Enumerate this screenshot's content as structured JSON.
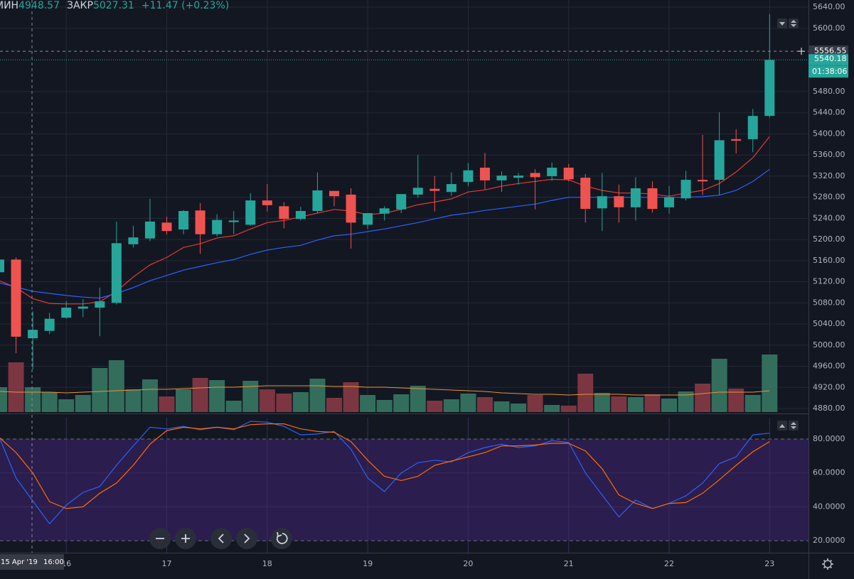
{
  "legend": {
    "low_label": "МИН",
    "low": 4948.57,
    "close_label": "ЗАКР",
    "close": 5027.31,
    "change": "+11.47 (+0.23%)"
  },
  "crosshair": {
    "price": 5556.55,
    "date": "15 Apr '19",
    "time": "16:00"
  },
  "last_price": {
    "value": 5540.18,
    "countdown": "01:38:06"
  },
  "chart_data": [
    {
      "type": "candlestick",
      "categories": [
        null,
        null,
        null,
        null,
        "16",
        null,
        null,
        null,
        null,
        null,
        "17",
        null,
        null,
        null,
        null,
        null,
        "18",
        null,
        null,
        null,
        null,
        null,
        "19",
        null,
        null,
        null,
        null,
        null,
        "20",
        null,
        null,
        null,
        null,
        null,
        "21",
        null,
        null,
        null,
        null,
        null,
        "22",
        null,
        null,
        null,
        null,
        null,
        "23"
      ],
      "open": [
        5138,
        5162,
        5013,
        5027,
        5052,
        5069,
        5071,
        5080,
        5191,
        5202,
        5232,
        5219,
        5255,
        5210,
        5233,
        5228,
        5274,
        5263,
        5239,
        5254,
        5292,
        5285,
        5228,
        5249,
        5257,
        5285,
        5296,
        5290,
        5309,
        5336,
        5312,
        5317,
        5326,
        5320,
        5336,
        5317,
        5259,
        5282,
        5261,
        5297,
        5261,
        5278,
        5313,
        5313,
        5390,
        5390,
        5434
      ],
      "high": [
        5162,
        5166,
        5064,
        5061,
        5083,
        5087,
        5109,
        5234,
        5226,
        5277,
        5243,
        5256,
        5269,
        5248,
        5254,
        5288,
        5305,
        5271,
        5262,
        5327,
        5291,
        5297,
        5250,
        5263,
        5286,
        5360,
        5320,
        5327,
        5345,
        5364,
        5329,
        5326,
        5333,
        5346,
        5343,
        5324,
        5326,
        5304,
        5318,
        5310,
        5301,
        5330,
        5398,
        5441,
        5409,
        5447,
        5627
      ],
      "low": [
        5135,
        4985,
        4954,
        5021,
        5050,
        5053,
        5017,
        5077,
        5185,
        5197,
        5210,
        5210,
        5173,
        5206,
        5210,
        5226,
        5253,
        5221,
        5236,
        5250,
        5263,
        5183,
        5220,
        5236,
        5250,
        5279,
        5253,
        5283,
        5301,
        5295,
        5290,
        5304,
        5257,
        5311,
        5310,
        5232,
        5216,
        5232,
        5236,
        5251,
        5249,
        5274,
        5284,
        5284,
        5363,
        5365,
        5431
      ],
      "close": [
        5162,
        5016,
        5029,
        5050,
        5071,
        5073,
        5083,
        5193,
        5204,
        5234,
        5216,
        5254,
        5210,
        5237,
        5236,
        5274,
        5265,
        5239,
        5254,
        5293,
        5282,
        5232,
        5250,
        5259,
        5286,
        5298,
        5292,
        5305,
        5331,
        5312,
        5321,
        5321,
        5318,
        5336,
        5314,
        5258,
        5282,
        5261,
        5297,
        5258,
        5280,
        5313,
        5310,
        5388,
        5387,
        5434,
        5540
      ],
      "volume": [
        35,
        70,
        35,
        28,
        18,
        24,
        62,
        73,
        32,
        46,
        22,
        32,
        48,
        45,
        16,
        44,
        32,
        26,
        28,
        47,
        20,
        42,
        24,
        17,
        25,
        37,
        16,
        18,
        26,
        21,
        15,
        12,
        24,
        10,
        9,
        54,
        27,
        22,
        21,
        25,
        19,
        29,
        40,
        75,
        33,
        24,
        81
      ],
      "up_color": "#26a69a",
      "down_color": "#ef5350",
      "volume_up_color": "#336e5c",
      "volume_down_color": "#7c3641",
      "volume_ma": {
        "color": "#e8923a",
        "values": [
          29,
          28,
          28,
          28,
          27,
          28,
          29,
          30,
          31,
          32,
          32,
          33,
          34,
          35,
          35,
          36,
          37,
          37,
          37,
          37,
          36,
          36,
          35,
          35,
          34,
          33,
          32,
          31,
          30,
          29,
          27,
          26,
          25,
          25,
          24,
          25,
          25,
          25,
          24,
          24,
          24,
          24,
          26,
          28,
          28,
          28,
          30
        ]
      },
      "series": [
        {
          "color": "#e53935",
          "values": [
            5122,
            5109,
            5088,
            5079,
            5078,
            5078,
            5082,
            5102,
            5129,
            5152,
            5166,
            5185,
            5192,
            5203,
            5207,
            5220,
            5232,
            5236,
            5243,
            5250,
            5257,
            5254,
            5247,
            5250,
            5257,
            5266,
            5271,
            5277,
            5290,
            5294,
            5301,
            5306,
            5310,
            5314,
            5313,
            5301,
            5293,
            5288,
            5288,
            5286,
            5282,
            5288,
            5293,
            5306,
            5328,
            5355,
            5395
          ]
        },
        {
          "color": "#2962ff",
          "values": [
            5118,
            5110,
            5102,
            5098,
            5094,
            5091,
            5089,
            5098,
            5109,
            5122,
            5132,
            5142,
            5149,
            5156,
            5162,
            5172,
            5180,
            5185,
            5189,
            5199,
            5207,
            5210,
            5215,
            5220,
            5226,
            5232,
            5239,
            5246,
            5250,
            5255,
            5259,
            5263,
            5267,
            5274,
            5280,
            5280,
            5280,
            5280,
            5280,
            5280,
            5280,
            5280,
            5281,
            5284,
            5293,
            5310,
            5333
          ]
        }
      ],
      "ylim": [
        4873.3,
        5653.5
      ],
      "yticks": [
        {
          "value": 5640,
          "label": "5640.00"
        },
        {
          "value": 5600,
          "label": "5600.00"
        },
        {
          "value": 5480,
          "label": "5480.00"
        },
        {
          "value": 5440,
          "label": "5440.00"
        },
        {
          "value": 5400,
          "label": "5400.00"
        },
        {
          "value": 5360,
          "label": "5360.00"
        },
        {
          "value": 5320,
          "label": "5320.00"
        },
        {
          "value": 5280,
          "label": "5280.00"
        },
        {
          "value": 5240,
          "label": "5240.00"
        },
        {
          "value": 5200,
          "label": "5200.00"
        },
        {
          "value": 5160,
          "label": "5160.00"
        },
        {
          "value": 5120,
          "label": "5120.00"
        },
        {
          "value": 5080,
          "label": "5080.00"
        },
        {
          "value": 5040,
          "label": "5040.00"
        },
        {
          "value": 5000,
          "label": "5000.00"
        },
        {
          "value": 4960,
          "label": "4960.00"
        },
        {
          "value": 4920,
          "label": "4920.00"
        },
        {
          "value": 4880,
          "label": "4880.00"
        }
      ],
      "grid": true
    },
    {
      "type": "line",
      "series": [
        {
          "color": "#2962ff",
          "values": [
            81,
            57,
            43.5,
            30,
            41,
            48.5,
            52,
            64.5,
            76,
            87,
            86,
            87.5,
            85.5,
            87,
            85.5,
            90.5,
            90,
            87.5,
            82.5,
            83,
            84.5,
            74,
            57,
            49,
            60,
            66,
            67.5,
            66.5,
            72,
            75,
            77,
            75,
            76,
            79,
            78,
            60,
            47,
            34,
            44,
            39,
            42,
            46.5,
            54,
            65.5,
            69.5,
            82.5,
            83.5
          ]
        },
        {
          "color": "#ff6d00",
          "values": [
            81,
            72,
            60,
            43,
            39,
            40,
            48,
            54,
            64.5,
            77,
            85,
            87,
            86,
            87,
            86,
            88.5,
            89,
            89,
            86,
            84.5,
            84,
            78.5,
            67.5,
            58,
            55.5,
            58,
            64.5,
            67,
            69.5,
            72,
            76,
            76,
            76.5,
            77.5,
            77.5,
            73,
            62.5,
            47,
            42,
            39,
            42,
            42.5,
            48,
            56,
            64.5,
            72.5,
            78.5
          ]
        }
      ],
      "band": [
        20,
        80
      ],
      "band_color": "#2b1d4d",
      "ylim": [
        12.9,
        92.6
      ],
      "yticks": [
        {
          "value": 80,
          "label": "80.0000"
        },
        {
          "value": 60,
          "label": "60.0000"
        },
        {
          "value": 40,
          "label": "40.0000"
        },
        {
          "value": 20,
          "label": "20.0000"
        }
      ],
      "grid": true
    }
  ]
}
